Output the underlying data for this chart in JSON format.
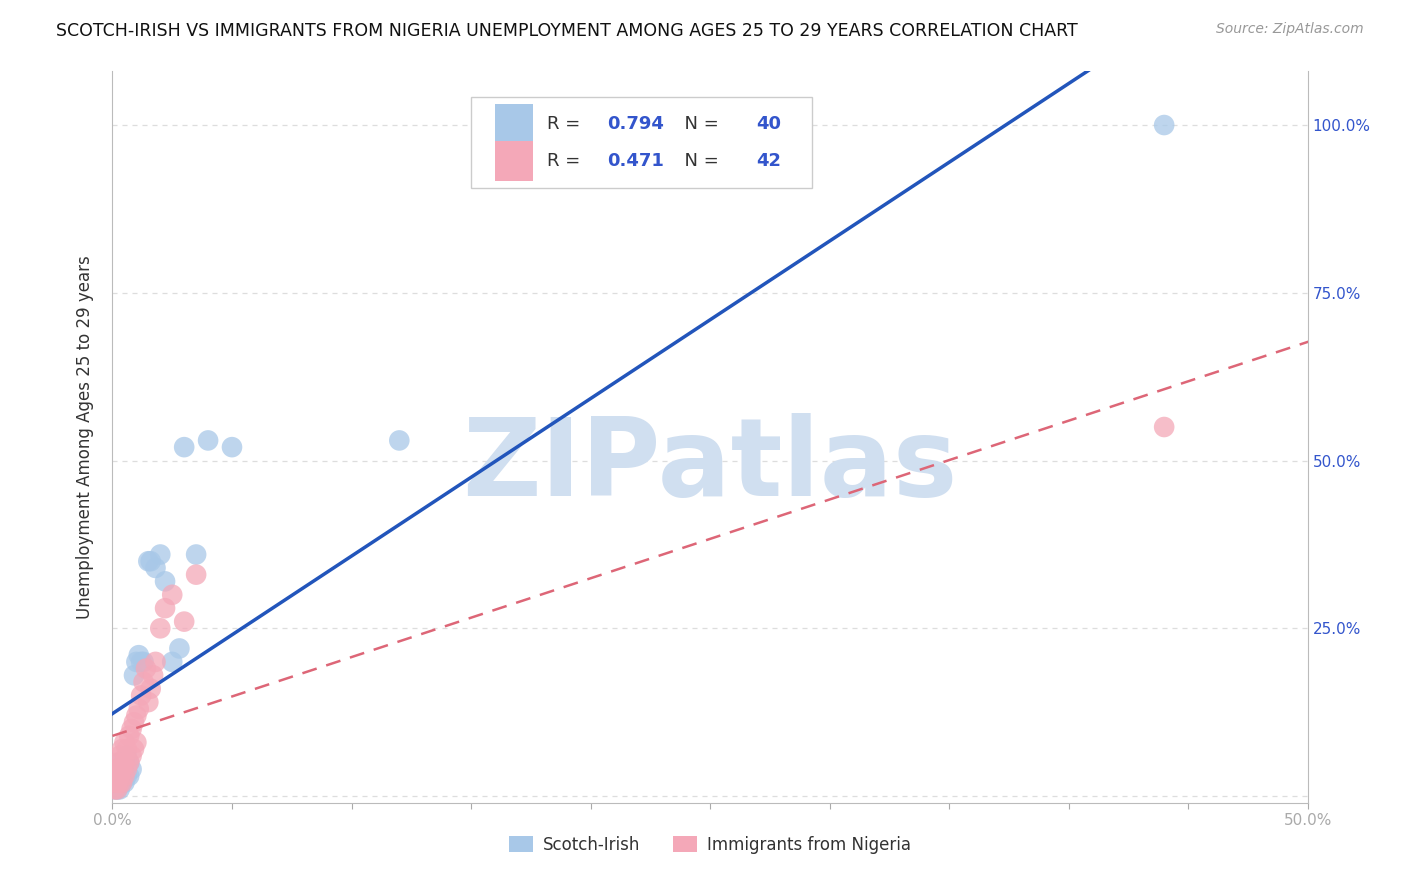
{
  "title": "SCOTCH-IRISH VS IMMIGRANTS FROM NIGERIA UNEMPLOYMENT AMONG AGES 25 TO 29 YEARS CORRELATION CHART",
  "source": "Source: ZipAtlas.com",
  "ylabel": "Unemployment Among Ages 25 to 29 years",
  "xlim": [
    0.0,
    0.5
  ],
  "ylim": [
    -0.01,
    1.08
  ],
  "xticks": [
    0.0,
    0.05,
    0.1,
    0.15,
    0.2,
    0.25,
    0.3,
    0.35,
    0.4,
    0.45,
    0.5
  ],
  "xtick_labels": [
    "0.0%",
    "",
    "",
    "",
    "",
    "",
    "",
    "",
    "",
    "",
    "50.0%"
  ],
  "yticks": [
    0.0,
    0.25,
    0.5,
    0.75,
    1.0
  ],
  "ytick_labels_right": [
    "",
    "25.0%",
    "50.0%",
    "75.0%",
    "100.0%"
  ],
  "series1_color": "#a8c8e8",
  "series2_color": "#f4a8b8",
  "series1_label": "Scotch-Irish",
  "series2_label": "Immigrants from Nigeria",
  "series1_R": "0.794",
  "series1_N": "40",
  "series2_R": "0.471",
  "series2_N": "42",
  "line1_color": "#2255bb",
  "line2_color": "#dd6677",
  "legend_text_color": "#333333",
  "legend_val_color": "#3355cc",
  "watermark": "ZIPatlas",
  "watermark_color": "#d0dff0",
  "grid_color": "#dddddd",
  "axis_color": "#bbbbbb",
  "tick_color": "#aaaaaa",
  "scotch_irish_x": [
    0.001,
    0.001,
    0.001,
    0.002,
    0.002,
    0.002,
    0.002,
    0.003,
    0.003,
    0.003,
    0.003,
    0.004,
    0.004,
    0.004,
    0.005,
    0.005,
    0.005,
    0.006,
    0.006,
    0.007,
    0.007,
    0.008,
    0.009,
    0.01,
    0.011,
    0.012,
    0.013,
    0.015,
    0.016,
    0.018,
    0.02,
    0.022,
    0.025,
    0.028,
    0.03,
    0.035,
    0.04,
    0.05,
    0.12,
    0.44
  ],
  "scotch_irish_y": [
    0.01,
    0.02,
    0.03,
    0.01,
    0.02,
    0.03,
    0.04,
    0.01,
    0.02,
    0.03,
    0.05,
    0.02,
    0.03,
    0.04,
    0.02,
    0.03,
    0.05,
    0.03,
    0.06,
    0.03,
    0.05,
    0.04,
    0.18,
    0.2,
    0.21,
    0.2,
    0.2,
    0.35,
    0.35,
    0.34,
    0.36,
    0.32,
    0.2,
    0.22,
    0.52,
    0.36,
    0.53,
    0.52,
    0.53,
    1.0
  ],
  "nigeria_x": [
    0.001,
    0.001,
    0.001,
    0.001,
    0.002,
    0.002,
    0.002,
    0.002,
    0.003,
    0.003,
    0.003,
    0.003,
    0.004,
    0.004,
    0.004,
    0.005,
    0.005,
    0.005,
    0.006,
    0.006,
    0.007,
    0.007,
    0.008,
    0.008,
    0.009,
    0.009,
    0.01,
    0.01,
    0.011,
    0.012,
    0.013,
    0.014,
    0.015,
    0.016,
    0.017,
    0.018,
    0.02,
    0.022,
    0.025,
    0.03,
    0.035,
    0.44
  ],
  "nigeria_y": [
    0.01,
    0.02,
    0.03,
    0.04,
    0.01,
    0.02,
    0.03,
    0.05,
    0.02,
    0.03,
    0.04,
    0.06,
    0.02,
    0.04,
    0.07,
    0.03,
    0.05,
    0.08,
    0.04,
    0.07,
    0.05,
    0.09,
    0.06,
    0.1,
    0.07,
    0.11,
    0.08,
    0.12,
    0.13,
    0.15,
    0.17,
    0.19,
    0.14,
    0.16,
    0.18,
    0.2,
    0.25,
    0.28,
    0.3,
    0.26,
    0.33,
    0.55
  ]
}
